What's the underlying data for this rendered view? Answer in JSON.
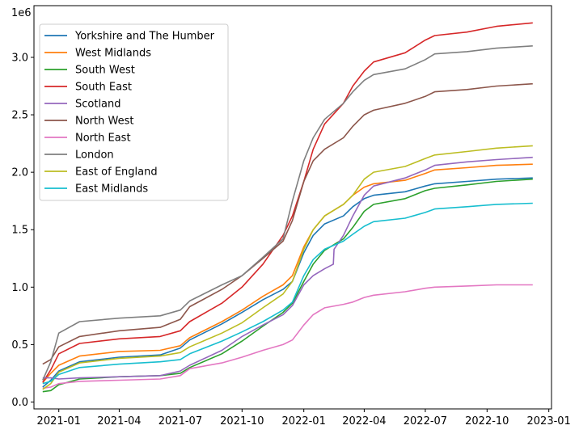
{
  "chart_data": {
    "type": "line",
    "title": "",
    "xlabel": "",
    "ylabel": "",
    "y_offset_label": "1e6",
    "xlim": [
      "2020-11-25",
      "2023-01-05"
    ],
    "ylim": [
      -0.06,
      3.45
    ],
    "x_ticks": [
      "2021-01-01",
      "2021-04-01",
      "2021-07-01",
      "2021-10-01",
      "2022-01-01",
      "2022-04-01",
      "2022-07-01",
      "2022-10-01",
      "2023-01-01"
    ],
    "x_tick_labels": [
      "2021-01",
      "2021-04",
      "2021-07",
      "2021-10",
      "2022-01",
      "2022-04",
      "2022-07",
      "2022-10",
      "2023-01"
    ],
    "y_ticks": [
      0.0,
      0.5,
      1.0,
      1.5,
      2.0,
      2.5,
      3.0
    ],
    "y_tick_labels": [
      "0.0",
      "0.5",
      "1.0",
      "1.5",
      "2.0",
      "2.5",
      "3.0"
    ],
    "legend_position": "top-left",
    "grid": false,
    "series": [
      {
        "name": "Yorkshire and The Humber",
        "color": "#1f77b4",
        "x": [
          "2020-12-08",
          "2020-12-20",
          "2021-01-01",
          "2021-02-01",
          "2021-04-01",
          "2021-06-01",
          "2021-07-01",
          "2021-07-15",
          "2021-09-01",
          "2021-10-01",
          "2021-11-01",
          "2021-12-01",
          "2021-12-15",
          "2022-01-01",
          "2022-01-15",
          "2022-02-01",
          "2022-03-01",
          "2022-03-15",
          "2022-04-01",
          "2022-04-15",
          "2022-06-01",
          "2022-07-01",
          "2022-07-15",
          "2022-09-01",
          "2022-10-15",
          "2022-12-08"
        ],
        "y": [
          0.13,
          0.19,
          0.27,
          0.35,
          0.39,
          0.41,
          0.47,
          0.54,
          0.68,
          0.78,
          0.89,
          0.98,
          1.05,
          1.3,
          1.45,
          1.55,
          1.62,
          1.7,
          1.77,
          1.8,
          1.83,
          1.88,
          1.9,
          1.92,
          1.94,
          1.95
        ]
      },
      {
        "name": "West Midlands",
        "color": "#ff7f0e",
        "x": [
          "2020-12-08",
          "2020-12-20",
          "2021-01-01",
          "2021-02-01",
          "2021-04-01",
          "2021-06-01",
          "2021-07-01",
          "2021-07-15",
          "2021-09-01",
          "2021-10-01",
          "2021-11-01",
          "2021-12-01",
          "2021-12-15",
          "2022-01-01",
          "2022-01-15",
          "2022-02-01",
          "2022-03-01",
          "2022-03-15",
          "2022-04-01",
          "2022-04-15",
          "2022-06-01",
          "2022-07-01",
          "2022-07-15",
          "2022-09-01",
          "2022-10-15",
          "2022-12-08"
        ],
        "y": [
          0.17,
          0.25,
          0.32,
          0.4,
          0.44,
          0.45,
          0.49,
          0.56,
          0.7,
          0.8,
          0.92,
          1.02,
          1.1,
          1.35,
          1.5,
          1.62,
          1.72,
          1.8,
          1.87,
          1.9,
          1.93,
          1.99,
          2.02,
          2.04,
          2.06,
          2.07
        ]
      },
      {
        "name": "South West",
        "color": "#2ca02c",
        "x": [
          "2020-12-08",
          "2020-12-20",
          "2021-01-01",
          "2021-02-01",
          "2021-04-01",
          "2021-06-01",
          "2021-07-01",
          "2021-07-15",
          "2021-09-01",
          "2021-10-01",
          "2021-11-01",
          "2021-12-01",
          "2021-12-15",
          "2022-01-01",
          "2022-01-15",
          "2022-02-01",
          "2022-03-01",
          "2022-03-15",
          "2022-04-01",
          "2022-04-15",
          "2022-06-01",
          "2022-07-01",
          "2022-07-15",
          "2022-09-01",
          "2022-10-15",
          "2022-12-08"
        ],
        "y": [
          0.09,
          0.1,
          0.15,
          0.2,
          0.22,
          0.23,
          0.25,
          0.3,
          0.42,
          0.53,
          0.66,
          0.78,
          0.86,
          1.05,
          1.2,
          1.32,
          1.42,
          1.52,
          1.66,
          1.72,
          1.77,
          1.84,
          1.86,
          1.89,
          1.92,
          1.94
        ]
      },
      {
        "name": "South East",
        "color": "#d62728",
        "x": [
          "2020-12-08",
          "2020-12-20",
          "2021-01-01",
          "2021-02-01",
          "2021-04-01",
          "2021-06-01",
          "2021-07-01",
          "2021-07-15",
          "2021-09-01",
          "2021-10-01",
          "2021-11-01",
          "2021-12-01",
          "2021-12-15",
          "2022-01-01",
          "2022-01-15",
          "2022-02-01",
          "2022-03-01",
          "2022-03-15",
          "2022-04-01",
          "2022-04-15",
          "2022-06-01",
          "2022-07-01",
          "2022-07-15",
          "2022-09-01",
          "2022-10-15",
          "2022-12-08"
        ],
        "y": [
          0.17,
          0.28,
          0.42,
          0.51,
          0.55,
          0.57,
          0.62,
          0.7,
          0.86,
          1.0,
          1.2,
          1.45,
          1.62,
          1.92,
          2.2,
          2.42,
          2.6,
          2.75,
          2.88,
          2.96,
          3.04,
          3.15,
          3.19,
          3.22,
          3.27,
          3.3
        ]
      },
      {
        "name": "Scotland",
        "color": "#9467bd",
        "x": [
          "2020-12-08",
          "2020-12-20",
          "2021-01-01",
          "2021-02-01",
          "2021-04-01",
          "2021-06-01",
          "2021-07-01",
          "2021-07-15",
          "2021-09-01",
          "2021-10-01",
          "2021-11-01",
          "2021-12-01",
          "2021-12-15",
          "2022-01-01",
          "2022-01-15",
          "2022-02-01",
          "2022-02-14",
          "2022-02-15",
          "2022-03-01",
          "2022-03-15",
          "2022-04-01",
          "2022-04-15",
          "2022-06-01",
          "2022-07-01",
          "2022-07-15",
          "2022-09-01",
          "2022-10-15",
          "2022-12-08"
        ],
        "y": [
          0.21,
          0.21,
          0.2,
          0.21,
          0.22,
          0.23,
          0.27,
          0.32,
          0.45,
          0.57,
          0.67,
          0.76,
          0.84,
          1.02,
          1.1,
          1.16,
          1.2,
          1.33,
          1.45,
          1.62,
          1.8,
          1.88,
          1.95,
          2.02,
          2.06,
          2.09,
          2.11,
          2.13
        ]
      },
      {
        "name": "North West",
        "color": "#8c564b",
        "x": [
          "2020-12-08",
          "2020-12-20",
          "2021-01-01",
          "2021-02-01",
          "2021-04-01",
          "2021-06-01",
          "2021-07-01",
          "2021-07-15",
          "2021-09-01",
          "2021-10-01",
          "2021-11-01",
          "2021-12-01",
          "2021-12-15",
          "2022-01-01",
          "2022-01-15",
          "2022-02-01",
          "2022-03-01",
          "2022-03-15",
          "2022-04-01",
          "2022-04-15",
          "2022-06-01",
          "2022-07-01",
          "2022-07-15",
          "2022-09-01",
          "2022-10-15",
          "2022-12-08"
        ],
        "y": [
          0.33,
          0.37,
          0.48,
          0.57,
          0.62,
          0.65,
          0.72,
          0.83,
          0.98,
          1.1,
          1.25,
          1.4,
          1.58,
          1.92,
          2.1,
          2.2,
          2.3,
          2.4,
          2.5,
          2.54,
          2.6,
          2.66,
          2.7,
          2.72,
          2.75,
          2.77
        ]
      },
      {
        "name": "North East",
        "color": "#e377c2",
        "x": [
          "2020-12-08",
          "2020-12-20",
          "2021-01-01",
          "2021-02-01",
          "2021-04-01",
          "2021-06-01",
          "2021-07-01",
          "2021-07-15",
          "2021-09-01",
          "2021-10-01",
          "2021-11-01",
          "2021-12-01",
          "2021-12-15",
          "2022-01-01",
          "2022-01-15",
          "2022-02-01",
          "2022-03-01",
          "2022-03-15",
          "2022-04-01",
          "2022-04-15",
          "2022-06-01",
          "2022-07-01",
          "2022-07-15",
          "2022-09-01",
          "2022-10-15",
          "2022-12-08"
        ],
        "y": [
          0.12,
          0.13,
          0.16,
          0.18,
          0.19,
          0.2,
          0.23,
          0.29,
          0.34,
          0.39,
          0.45,
          0.5,
          0.54,
          0.67,
          0.76,
          0.82,
          0.85,
          0.87,
          0.91,
          0.93,
          0.96,
          0.99,
          1.0,
          1.01,
          1.02,
          1.02
        ]
      },
      {
        "name": "London",
        "color": "#7f7f7f",
        "x": [
          "2020-12-08",
          "2020-12-20",
          "2021-01-01",
          "2021-02-01",
          "2021-04-01",
          "2021-06-01",
          "2021-07-01",
          "2021-07-15",
          "2021-09-01",
          "2021-10-01",
          "2021-11-01",
          "2021-12-01",
          "2021-12-15",
          "2022-01-01",
          "2022-01-15",
          "2022-02-01",
          "2022-03-01",
          "2022-03-15",
          "2022-04-01",
          "2022-04-15",
          "2022-06-01",
          "2022-07-01",
          "2022-07-15",
          "2022-09-01",
          "2022-10-15",
          "2022-12-08"
        ],
        "y": [
          0.19,
          0.35,
          0.6,
          0.7,
          0.73,
          0.75,
          0.8,
          0.88,
          1.02,
          1.1,
          1.26,
          1.42,
          1.75,
          2.1,
          2.3,
          2.46,
          2.6,
          2.7,
          2.8,
          2.85,
          2.9,
          2.98,
          3.03,
          3.05,
          3.08,
          3.1
        ]
      },
      {
        "name": "East of England",
        "color": "#bcbd22",
        "x": [
          "2020-12-08",
          "2020-12-20",
          "2021-01-01",
          "2021-02-01",
          "2021-04-01",
          "2021-06-01",
          "2021-07-01",
          "2021-07-15",
          "2021-09-01",
          "2021-10-01",
          "2021-11-01",
          "2021-12-01",
          "2021-12-15",
          "2022-01-01",
          "2022-01-15",
          "2022-02-01",
          "2022-03-01",
          "2022-03-15",
          "2022-04-01",
          "2022-04-15",
          "2022-06-01",
          "2022-07-01",
          "2022-07-15",
          "2022-09-01",
          "2022-10-15",
          "2022-12-08"
        ],
        "y": [
          0.11,
          0.16,
          0.26,
          0.34,
          0.38,
          0.4,
          0.43,
          0.48,
          0.6,
          0.69,
          0.82,
          0.94,
          1.05,
          1.33,
          1.5,
          1.62,
          1.72,
          1.8,
          1.94,
          2.0,
          2.05,
          2.12,
          2.15,
          2.18,
          2.21,
          2.23
        ]
      },
      {
        "name": "East Midlands",
        "color": "#17becf",
        "x": [
          "2020-12-08",
          "2020-12-20",
          "2021-01-01",
          "2021-02-01",
          "2021-04-01",
          "2021-06-01",
          "2021-07-01",
          "2021-07-15",
          "2021-09-01",
          "2021-10-01",
          "2021-11-01",
          "2021-12-01",
          "2021-12-15",
          "2022-01-01",
          "2022-01-15",
          "2022-02-01",
          "2022-03-01",
          "2022-03-15",
          "2022-04-01",
          "2022-04-15",
          "2022-06-01",
          "2022-07-01",
          "2022-07-15",
          "2022-09-01",
          "2022-10-15",
          "2022-12-08"
        ],
        "y": [
          0.16,
          0.18,
          0.24,
          0.3,
          0.33,
          0.35,
          0.37,
          0.42,
          0.53,
          0.61,
          0.7,
          0.8,
          0.87,
          1.1,
          1.24,
          1.33,
          1.4,
          1.46,
          1.53,
          1.57,
          1.6,
          1.65,
          1.68,
          1.7,
          1.72,
          1.73
        ]
      }
    ]
  }
}
